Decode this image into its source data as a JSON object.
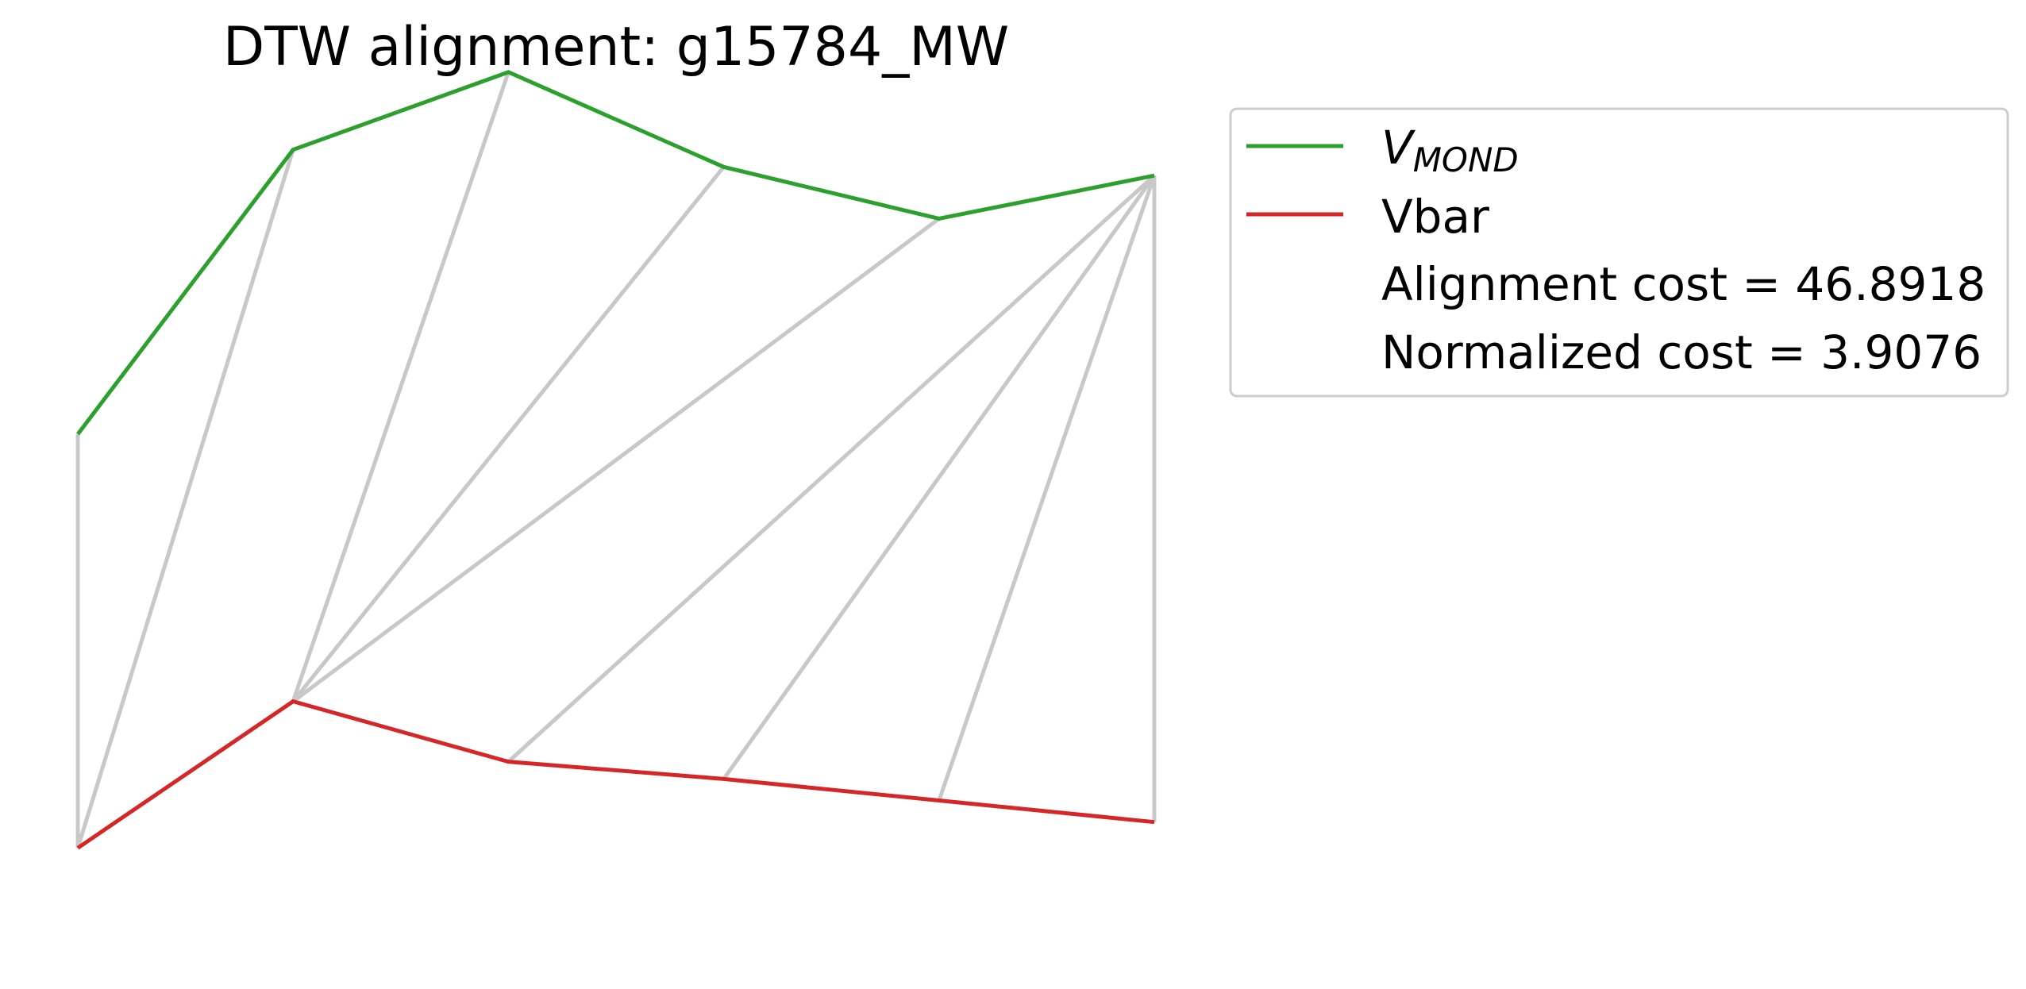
{
  "chart_data": {
    "type": "line",
    "title": "DTW alignment: g15784_MW",
    "xlabel": "",
    "ylabel": "",
    "axes_visible": false,
    "grid": false,
    "legend_position": "outside right, top",
    "series": [
      {
        "name": "V_MOND",
        "name_main": "V",
        "name_sub": "MOND",
        "color": "#2ca02c",
        "x": [
          0,
          1,
          2,
          3,
          4,
          5
        ],
        "y": [
          0.57,
          0.9,
          0.99,
          0.88,
          0.82,
          0.87
        ]
      },
      {
        "name": "Vbar",
        "color": "#d62728",
        "x": [
          0,
          1,
          2,
          3,
          4,
          5
        ],
        "y": [
          0.09,
          0.26,
          0.19,
          0.17,
          0.145,
          0.12
        ]
      }
    ],
    "alignment_pairs": [
      [
        0,
        0
      ],
      [
        1,
        0
      ],
      [
        2,
        1
      ],
      [
        3,
        1
      ],
      [
        4,
        1
      ],
      [
        5,
        2
      ],
      [
        5,
        3
      ],
      [
        5,
        4
      ],
      [
        5,
        5
      ]
    ],
    "alignment_color": "#c8c8c8",
    "ylim": [
      0.0,
      1.0
    ],
    "xlim": [
      0,
      5
    ],
    "legend_entries": [
      {
        "label": "Alignment cost = 46.8918"
      },
      {
        "label": "Normalized cost = 3.9076"
      }
    ]
  }
}
